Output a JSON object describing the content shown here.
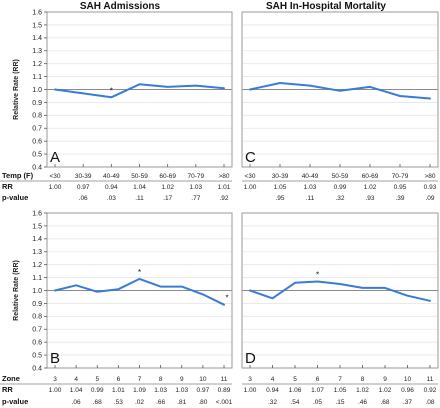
{
  "chart_data": {
    "type": "line",
    "columns": [
      {
        "title": "SAH Admissions"
      },
      {
        "title": "SAH In-Hospital Mortality"
      }
    ],
    "ylabel": "Relative Rate (RR)",
    "ylim": [
      0.4,
      1.6
    ],
    "yticks": [
      "0.4",
      "0.5",
      "0.6",
      "0.7",
      "0.8",
      "0.9",
      "1.0",
      "1.1",
      "1.2",
      "1.3",
      "1.4",
      "1.5",
      "1.6"
    ],
    "reference_line": 1.0,
    "grid": true,
    "panels": [
      {
        "label": "A",
        "factor": "temperature",
        "categories": [
          "<30",
          "30-39",
          "40-49",
          "50-59",
          "60-69",
          "70-79",
          ">80"
        ],
        "values": [
          1.0,
          0.97,
          0.94,
          1.04,
          1.02,
          1.03,
          1.01
        ],
        "p_values": [
          "",
          ".06",
          ".03",
          ".11",
          ".17",
          ".77",
          ".92"
        ],
        "significant": [
          false,
          false,
          true,
          false,
          false,
          false,
          false
        ],
        "rows": [
          {
            "label": "Temp (F)",
            "cells": [
              "<30",
              "30-39",
              "40-49",
              "50-59",
              "60-69",
              "70-79",
              ">80"
            ]
          },
          {
            "label": "RR",
            "cells": [
              "1.00",
              "0.97",
              "0.94",
              "1.04",
              "1.02",
              "1.03",
              "1.01"
            ]
          },
          {
            "label": "p-value",
            "cells": [
              "",
              ".06",
              ".03",
              ".11",
              ".17",
              ".77",
              ".92"
            ]
          }
        ]
      },
      {
        "label": "C",
        "factor": "temperature",
        "categories": [
          "<30",
          "30-39",
          "40-49",
          "50-59",
          "60-69",
          "70-79",
          ">80"
        ],
        "values": [
          1.0,
          1.05,
          1.03,
          0.99,
          1.02,
          0.95,
          0.93
        ],
        "p_values": [
          "",
          ".95",
          ".11",
          ".32",
          ".93",
          ".39",
          ".09"
        ],
        "significant": [
          false,
          false,
          false,
          false,
          false,
          false,
          false
        ],
        "rows": [
          {
            "label": "Temp (F)",
            "cells": [
              "<30",
              "30-39",
              "40-49",
              "50-59",
              "60-69",
              "70-79",
              ">80"
            ]
          },
          {
            "label": "RR",
            "cells": [
              "1.00",
              "1.05",
              "1.03",
              "0.99",
              "1.02",
              "0.95",
              "0.93"
            ]
          },
          {
            "label": "p-value",
            "cells": [
              "",
              ".95",
              ".11",
              ".32",
              ".93",
              ".39",
              ".09"
            ]
          }
        ]
      },
      {
        "label": "B",
        "factor": "zone",
        "categories": [
          "3",
          "4",
          "5",
          "6",
          "7",
          "8",
          "9",
          "10",
          "11"
        ],
        "values": [
          1.0,
          1.04,
          0.99,
          1.01,
          1.09,
          1.03,
          1.03,
          0.97,
          0.89
        ],
        "p_values": [
          "",
          ".06",
          ".68",
          ".53",
          ".02",
          ".66",
          ".81",
          ".80",
          "<.001"
        ],
        "significant": [
          false,
          false,
          false,
          false,
          true,
          false,
          false,
          false,
          true
        ],
        "rows": [
          {
            "label": "Zone",
            "cells": [
              "3",
              "4",
              "5",
              "6",
              "7",
              "8",
              "9",
              "10",
              "11"
            ]
          },
          {
            "label": "RR",
            "cells": [
              "1.00",
              "1.04",
              "0.99",
              "1.01",
              "1.09",
              "1.03",
              "1.03",
              "0.97",
              "0.89"
            ]
          },
          {
            "label": "p-value",
            "cells": [
              "",
              ".06",
              ".68",
              ".53",
              ".02",
              ".66",
              ".81",
              ".80",
              "<.001"
            ]
          }
        ]
      },
      {
        "label": "D",
        "factor": "zone",
        "categories": [
          "3",
          "4",
          "5",
          "6",
          "7",
          "8",
          "9",
          "10",
          "11"
        ],
        "values": [
          1.0,
          0.94,
          1.06,
          1.07,
          1.05,
          1.02,
          1.02,
          0.96,
          0.92
        ],
        "p_values": [
          "",
          ".32",
          ".54",
          ".05",
          ".15",
          ".46",
          ".68",
          ".37",
          ".08"
        ],
        "significant": [
          false,
          false,
          false,
          true,
          false,
          false,
          false,
          false,
          false
        ],
        "rows": [
          {
            "label": "Zone",
            "cells": [
              "3",
              "4",
              "5",
              "6",
              "7",
              "8",
              "9",
              "10",
              "11"
            ]
          },
          {
            "label": "RR",
            "cells": [
              "1.00",
              "0.94",
              "1.06",
              "1.07",
              "1.05",
              "1.02",
              "1.02",
              "0.96",
              "0.92"
            ]
          },
          {
            "label": "p-value",
            "cells": [
              "",
              ".32",
              ".54",
              ".05",
              ".15",
              ".46",
              ".68",
              ".37",
              ".08"
            ]
          }
        ]
      }
    ],
    "significance_marker": "*",
    "colors": {
      "line": "#3a7bd5",
      "reference": "#8a8a8a",
      "frame": "#9a9a9a"
    }
  }
}
